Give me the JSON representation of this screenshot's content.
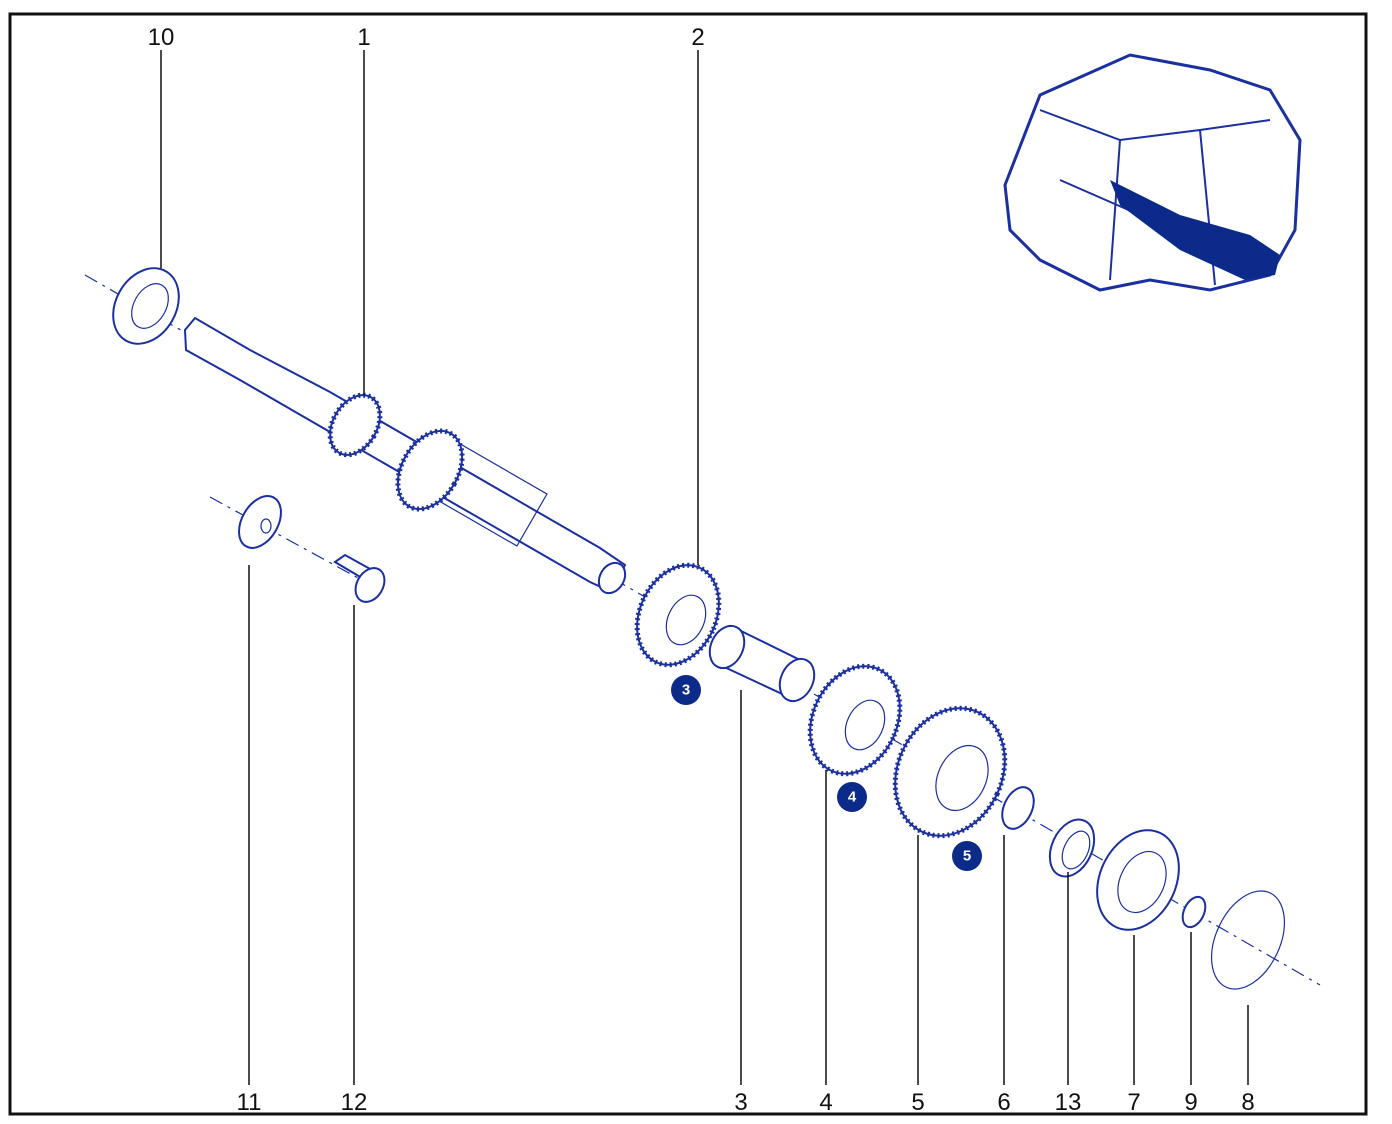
{
  "callouts": [
    {
      "label": "10"
    },
    {
      "label": "1"
    },
    {
      "label": "2"
    },
    {
      "label": "11"
    },
    {
      "label": "12"
    },
    {
      "label": "3"
    },
    {
      "label": "4"
    },
    {
      "label": "5"
    },
    {
      "label": "6"
    },
    {
      "label": "13"
    },
    {
      "label": "7"
    },
    {
      "label": "9"
    },
    {
      "label": "8"
    }
  ],
  "badges": [
    {
      "label": "3"
    },
    {
      "label": "4"
    },
    {
      "label": "5"
    }
  ]
}
